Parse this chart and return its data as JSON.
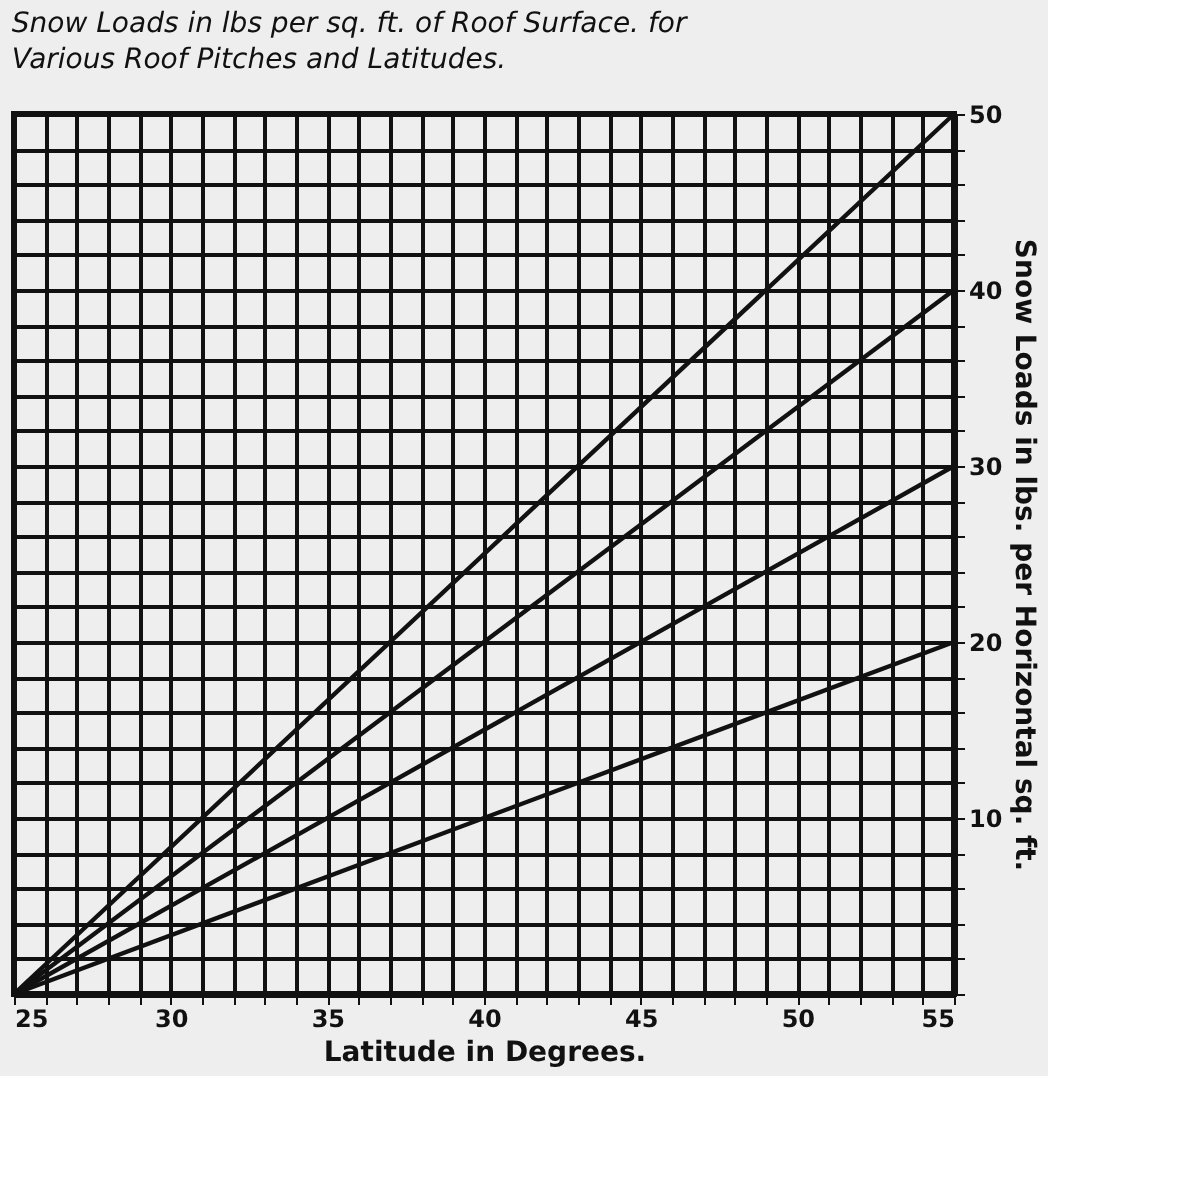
{
  "chart_data": {
    "type": "line",
    "title": "Snow Loads in lbs per sq. ft. of Roof Surface. for Various Roof Pitches and Latitudes.",
    "xlabel": "Latitude in Degrees.",
    "ylabel": "Snow Loads in lbs. per Horizontal sq. ft.",
    "x": [
      25,
      55
    ],
    "series": [
      {
        "color": "#111111",
        "values": [
          0,
          50
        ]
      },
      {
        "color": "#111111",
        "values": [
          0,
          40
        ]
      },
      {
        "color": "#111111",
        "values": [
          0,
          30
        ]
      },
      {
        "color": "#111111",
        "values": [
          0,
          20
        ]
      }
    ],
    "xlim": [
      25,
      55
    ],
    "ylim": [
      0,
      50
    ],
    "xticks": [
      25,
      {
        "value": 26,
        "label": null
      },
      {
        "value": 27,
        "label": null
      },
      {
        "value": 28,
        "label": null
      },
      {
        "value": 29,
        "label": null
      },
      30,
      {
        "value": 31,
        "label": null
      },
      {
        "value": 32,
        "label": null
      },
      {
        "value": 33,
        "label": null
      },
      {
        "value": 34,
        "label": null
      },
      35,
      {
        "value": 36,
        "label": null
      },
      {
        "value": 37,
        "label": null
      },
      {
        "value": 38,
        "label": null
      },
      {
        "value": 39,
        "label": null
      },
      40,
      {
        "value": 41,
        "label": null
      },
      {
        "value": 42,
        "label": null
      },
      {
        "value": 43,
        "label": null
      },
      {
        "value": 44,
        "label": null
      },
      45,
      {
        "value": 46,
        "label": null
      },
      {
        "value": 47,
        "label": null
      },
      {
        "value": 48,
        "label": null
      },
      {
        "value": 49,
        "label": null
      },
      50,
      {
        "value": 51,
        "label": null
      },
      {
        "value": 52,
        "label": null
      },
      {
        "value": 53,
        "label": null
      },
      {
        "value": 54,
        "label": null
      },
      55
    ],
    "yticks": [
      {
        "value": 0,
        "label": null
      },
      {
        "value": 2,
        "label": null
      },
      {
        "value": 4,
        "label": null
      },
      {
        "value": 6,
        "label": null
      },
      {
        "value": 8,
        "label": null
      },
      10,
      {
        "value": 12,
        "label": null
      },
      {
        "value": 14,
        "label": null
      },
      {
        "value": 16,
        "label": null
      },
      {
        "value": 18,
        "label": null
      },
      20,
      {
        "value": 22,
        "label": null
      },
      {
        "value": 24,
        "label": null
      },
      {
        "value": 26,
        "label": null
      },
      {
        "value": 28,
        "label": null
      },
      30,
      {
        "value": 32,
        "label": null
      },
      {
        "value": 34,
        "label": null
      },
      {
        "value": 36,
        "label": null
      },
      {
        "value": 38,
        "label": null
      },
      40,
      {
        "value": 42,
        "label": null
      },
      {
        "value": 44,
        "label": null
      },
      {
        "value": 46,
        "label": null
      },
      {
        "value": 48,
        "label": null
      },
      50
    ],
    "grid": true,
    "marker": "none",
    "line_style": "solid"
  }
}
